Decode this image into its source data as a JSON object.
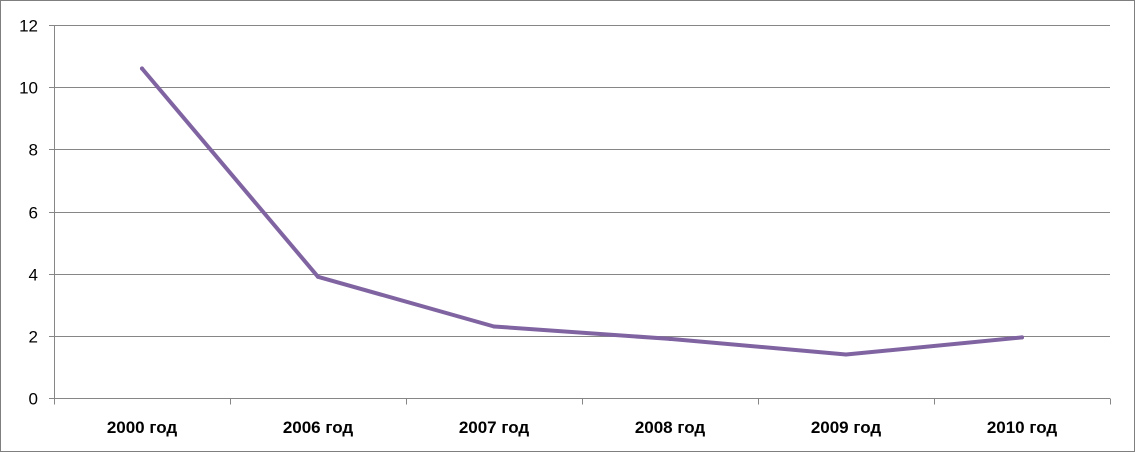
{
  "chart_data": {
    "type": "line",
    "categories": [
      "2000 год",
      "2006 год",
      "2007 год",
      "2008 год",
      "2009 год",
      "2010 год"
    ],
    "series": [
      {
        "values": [
          10.6,
          3.9,
          2.3,
          1.9,
          1.4,
          1.95
        ]
      }
    ],
    "ylim": [
      0,
      12
    ],
    "yticks": [
      "0",
      "2",
      "4",
      "6",
      "8",
      "10",
      "12"
    ],
    "grid": true,
    "legend": "none",
    "colors": {
      "line": "#8064a2",
      "grid": "#868686",
      "axis": "#868686"
    }
  }
}
